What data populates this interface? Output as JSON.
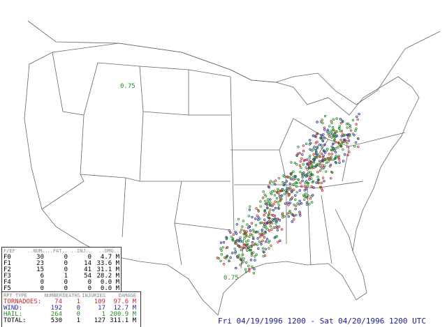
{
  "f_table": {
    "headers": [
      "F/EF",
      "..NUM..",
      "..FAT..",
      "..INJ..",
      "..DMG.."
    ],
    "rows": [
      [
        "F0",
        "30",
        "0",
        "0",
        "4.7 M"
      ],
      [
        "F1",
        "23",
        "0",
        "14",
        "33.6 M"
      ],
      [
        "F2",
        "15",
        "0",
        "41",
        "31.1 M"
      ],
      [
        "F3",
        "6",
        "1",
        "54",
        "28.2 M"
      ],
      [
        "F4",
        "0",
        "0",
        "0",
        "0.0 M"
      ],
      [
        "F5",
        "0",
        "0",
        "0",
        "0.0 M"
      ]
    ]
  },
  "report_table": {
    "headers": [
      "RPT TYPE",
      "NUMBER",
      "DEATHS",
      "INJURIES",
      "DAMAGE"
    ],
    "rows": [
      {
        "type": "TORNADOES:",
        "number": "74",
        "deaths": "1",
        "injuries": "109",
        "damage": "97.6 M",
        "color": "#c0282d"
      },
      {
        "type": "WIND:",
        "number": "192",
        "deaths": "0",
        "injuries": "17",
        "damage": "12.7 M",
        "color": "#2a2a8c"
      },
      {
        "type": "HAIL:",
        "number": "264",
        "deaths": "0",
        "injuries": "1",
        "damage": "200.9 M",
        "color": "#228b22"
      },
      {
        "type": "TOTAL:",
        "number": "530",
        "deaths": "1",
        "injuries": "127",
        "damage": "311.1 M",
        "color": "#000000"
      }
    ]
  },
  "date_range": "Fri 04/19/1996 1200 - Sat 04/20/1996 1200 UTC",
  "map_labels": [
    "0.75",
    "0.75"
  ],
  "colors": {
    "tornado": "#c0282d",
    "wind": "#2a2a8c",
    "hail": "#228b22",
    "border": "#555555"
  }
}
